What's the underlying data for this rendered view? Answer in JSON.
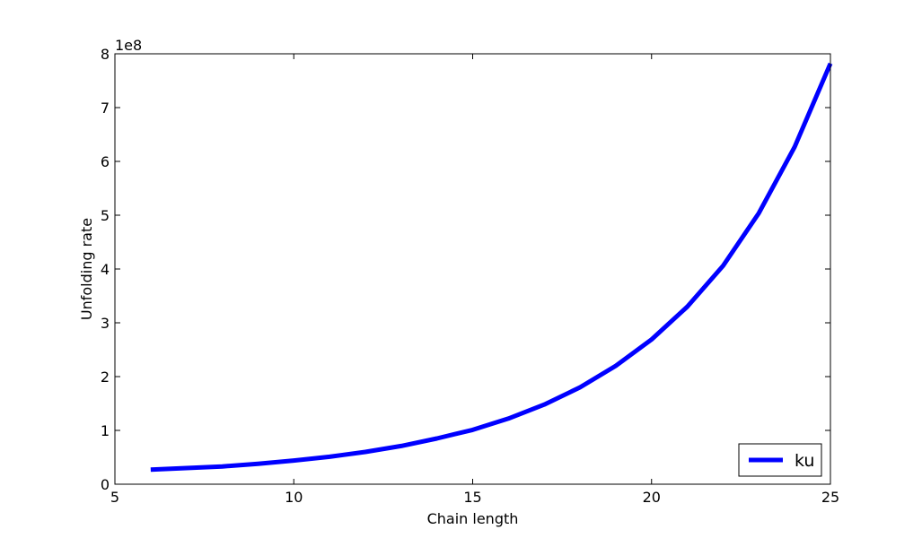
{
  "chart_data": {
    "type": "line",
    "title": "",
    "xlabel": "Chain length",
    "ylabel": "Unfolding rate",
    "y_offset_label": "1e8",
    "xlim": [
      5,
      25
    ],
    "ylim": [
      0,
      8
    ],
    "x_ticks": [
      "5",
      "10",
      "15",
      "20",
      "25"
    ],
    "y_ticks": [
      "0",
      "1",
      "2",
      "3",
      "4",
      "5",
      "6",
      "7",
      "8"
    ],
    "grid": false,
    "legend_position": "lower-right",
    "series": [
      {
        "name": "ku",
        "color": "#0000ff",
        "x": [
          6,
          7,
          8,
          9,
          10,
          11,
          12,
          13,
          14,
          15,
          16,
          17,
          18,
          19,
          20,
          21,
          22,
          23,
          24,
          25
        ],
        "values": [
          0.27,
          0.3,
          0.33,
          0.38,
          0.44,
          0.51,
          0.6,
          0.71,
          0.85,
          1.01,
          1.22,
          1.48,
          1.8,
          2.2,
          2.69,
          3.3,
          4.06,
          5.04,
          6.27,
          7.82
        ]
      }
    ]
  }
}
